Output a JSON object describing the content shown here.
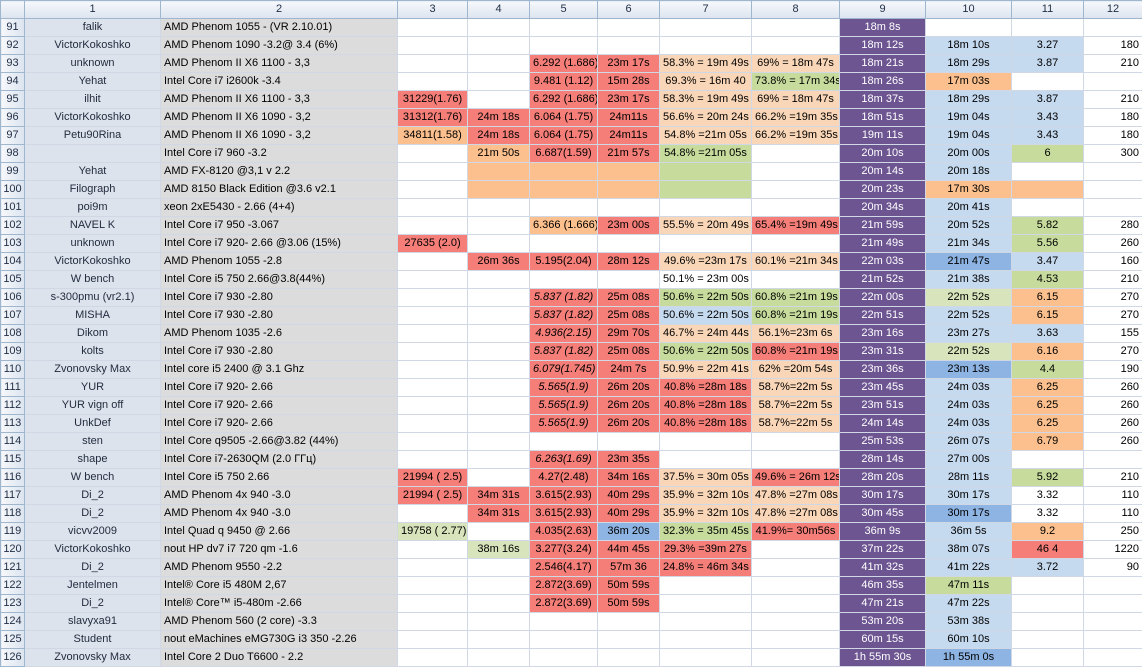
{
  "colors": {
    "header_bg": "#dce4ef",
    "name_col": "#dde3ec",
    "cpu_col": "#dcdcdc",
    "red": "#f57e79",
    "orange": "#fbc08d",
    "green": "#c6db9c",
    "lightblue": "#c5d9ef",
    "blue": "#8eb4e3",
    "purple_dark": "#5f4a7a",
    "purple": "#6c5591",
    "peach": "#f9d6b7",
    "lightgreen": "#d8e4bc"
  },
  "columns": [
    "1",
    "2",
    "3",
    "4",
    "5",
    "6",
    "7",
    "8",
    "9",
    "10",
    "11",
    "12"
  ],
  "rows": [
    {
      "n": "91",
      "c": [
        "falik",
        "AMD Phenom 1055 - (VR 2.10.01)",
        "",
        "",
        "",
        "",
        "",
        "",
        "18m 8s",
        "",
        "",
        ""
      ],
      "bg": [
        "",
        "",
        "",
        "",
        "",
        "",
        "",
        "",
        "pd",
        "",
        "",
        ""
      ]
    },
    {
      "n": "92",
      "c": [
        "VictorKokoshko",
        "AMD Phenom 1090 -3.2@ 3.4 (6%)",
        "",
        "",
        "",
        "",
        "",
        "",
        "18m 12s",
        "18m 10s",
        "3.27",
        "180"
      ],
      "bg": [
        "",
        "",
        "",
        "",
        "",
        "",
        "",
        "",
        "pd",
        "lb",
        "lb",
        ""
      ]
    },
    {
      "n": "93",
      "c": [
        "unknown",
        "AMD Phenom II X6 1100 - 3,3",
        "",
        "",
        "6.292 (1.686)",
        "23m 17s",
        "58.3% = 19m 49s",
        "69% = 18m 47s",
        "18m 21s",
        "18m 29s",
        "3.87",
        "210"
      ],
      "bg": [
        "",
        "",
        "",
        "",
        "r",
        "r",
        "pe",
        "pe",
        "pd",
        "lb",
        "lb",
        ""
      ]
    },
    {
      "n": "94",
      "c": [
        "Yehat",
        "Intel Core i7 i2600k -3.4",
        "",
        "",
        "9.481 (1.12)",
        "15m 28s",
        "69.3% = 16m 40",
        "73.8% = 17m 34s",
        "18m 26s",
        "17m 03s",
        "",
        ""
      ],
      "bg": [
        "",
        "",
        "",
        "",
        "r",
        "r",
        "pe",
        "g",
        "pd",
        "or",
        "",
        ""
      ]
    },
    {
      "n": "95",
      "c": [
        "ilhit",
        "AMD Phenom II X6 1100 - 3,3",
        "31229(1.76)",
        "",
        "6.292 (1.686)",
        "23m 17s",
        "58.3% = 19m 49s",
        "69% = 18m 47s",
        "18m 37s",
        "18m 29s",
        "3.87",
        "210"
      ],
      "bg": [
        "",
        "",
        "r",
        "",
        "r",
        "r",
        "pe",
        "pe",
        "pd",
        "lb",
        "lb",
        ""
      ]
    },
    {
      "n": "96",
      "c": [
        "VictorKokoshko",
        "AMD Phenom II X6 1090 - 3,2",
        "31312(1.76)",
        "24m 18s",
        "6.064 (1.75)",
        "24m11s",
        "56.6% = 20m 24s",
        "66.2% =19m 35s",
        "18m 51s",
        "19m 04s",
        "3.43",
        "180"
      ],
      "bg": [
        "",
        "",
        "r",
        "r",
        "r",
        "r",
        "pe",
        "pe",
        "pd",
        "lb",
        "lb",
        ""
      ]
    },
    {
      "n": "97",
      "c": [
        "Petu90Rina",
        "AMD Phenom II X6 1090 - 3,2",
        "34811(1.58)",
        "24m 18s",
        "6.064 (1.75)",
        "24m11s",
        "54.8% =21m 05s",
        "66.2% =19m 35s",
        "19m 11s",
        "19m 04s",
        "3.43",
        "180"
      ],
      "bg": [
        "",
        "",
        "or",
        "r",
        "r",
        "r",
        "pe",
        "pe",
        "pd",
        "lb",
        "lb",
        ""
      ]
    },
    {
      "n": "98",
      "c": [
        "",
        "Intel Core i7 960 -3.2",
        "",
        "21m 50s",
        "6.687(1.59)",
        "21m 57s",
        "54.8% =21m 05s",
        "",
        "20m 10s",
        "20m 00s",
        "6",
        "300"
      ],
      "bg": [
        "",
        "",
        "",
        "or",
        "r",
        "r",
        "g",
        "",
        "pd",
        "lb",
        "g",
        ""
      ]
    },
    {
      "n": "99",
      "c": [
        "Yehat",
        "AMD FX-8120 @3,1 v 2.2",
        "",
        "",
        "",
        "",
        "",
        "",
        "20m 14s",
        "20m 18s",
        "",
        ""
      ],
      "bg": [
        "",
        "",
        "",
        "or",
        "or",
        "or",
        "g",
        "",
        "pd",
        "lb",
        "",
        ""
      ]
    },
    {
      "n": "100",
      "c": [
        "Filograph",
        "AMD 8150 Black Edition @3.6 v2.1",
        "",
        "",
        "",
        "",
        "",
        "",
        "20m 23s",
        "17m 30s",
        "",
        ""
      ],
      "bg": [
        "",
        "",
        "",
        "or",
        "or",
        "or",
        "g",
        "",
        "pd",
        "or",
        "or",
        ""
      ]
    },
    {
      "n": "101",
      "c": [
        "poi9m",
        "xeon 2xE5430 - 2.66 (4+4)",
        "",
        "",
        "",
        "",
        "",
        "",
        "20m 34s",
        "20m 41s",
        "",
        ""
      ],
      "bg": [
        "",
        "",
        "",
        "",
        "",
        "",
        "",
        "",
        "pd",
        "lb",
        "",
        ""
      ]
    },
    {
      "n": "102",
      "c": [
        "NAVEL K",
        "Intel Core i7 950 -3.067",
        "",
        "",
        "6.366 (1.666)",
        "23m 00s",
        "55.5% = 20m 49s",
        "65.4% =19m 49s",
        "21m 59s",
        "20m 52s",
        "5.82",
        "280"
      ],
      "bg": [
        "",
        "",
        "",
        "",
        "or",
        "r",
        "pe",
        "r",
        "pd",
        "lb",
        "g",
        ""
      ]
    },
    {
      "n": "103",
      "c": [
        "unknown",
        "Intel Core i7 920- 2.66 @3.06 (15%)",
        "27635 (2.0)",
        "",
        "",
        "",
        "",
        "",
        "21m 49s",
        "21m 34s",
        "5.56",
        "260"
      ],
      "bg": [
        "",
        "",
        "r",
        "",
        "",
        "",
        "",
        "",
        "pd",
        "lb",
        "g",
        ""
      ]
    },
    {
      "n": "104",
      "c": [
        "VictorKokoshko",
        "AMD Phenom 1055 -2.8",
        "",
        "26m 36s",
        "5.195(2.04)",
        "28m 12s",
        "49.6% =23m 17s",
        "60.1% =21m 34s",
        "22m 03s",
        "21m 47s",
        "3.47",
        "160"
      ],
      "bg": [
        "",
        "",
        "",
        "r",
        "r",
        "r",
        "pe",
        "pe",
        "pd",
        "b",
        "lb",
        ""
      ]
    },
    {
      "n": "105",
      "c": [
        "W bench",
        "Intel Core i5 750 2.66@3.8(44%)",
        "",
        "",
        "",
        "",
        "50.1% = 23m 00s",
        "",
        "21m 52s",
        "21m 38s",
        "4.53",
        "210"
      ],
      "bg": [
        "",
        "",
        "",
        "",
        "",
        "",
        "",
        "",
        "pd",
        "lb",
        "g",
        ""
      ]
    },
    {
      "n": "106",
      "c": [
        "s-300pmu (vr2.1)",
        "Intel Core i7 930 -2.80",
        "",
        "",
        "5.837 (1.82)",
        "25m 08s",
        "50.6% = 22m 50s",
        "60.8% =21m 19s",
        "22m 00s",
        "22m 52s",
        "6.15",
        "270"
      ],
      "bg": [
        "",
        "",
        "",
        "",
        "r",
        "r",
        "g",
        "g",
        "pd",
        "lg",
        "or",
        ""
      ]
    },
    {
      "n": "107",
      "c": [
        "MISHA",
        "Intel Core i7 930 -2.80",
        "",
        "",
        "5.837 (1.82)",
        "25m 08s",
        "50.6% = 22m 50s",
        "60.8% =21m 19s",
        "22m 51s",
        "22m 52s",
        "6.15",
        "270"
      ],
      "bg": [
        "",
        "",
        "",
        "",
        "r",
        "r",
        "lb",
        "g",
        "pd",
        "lb",
        "or",
        ""
      ]
    },
    {
      "n": "108",
      "c": [
        "Dikom",
        "AMD Phenom 1035 -2.6",
        "",
        "",
        "4.936(2.15)",
        "29m 70s",
        "46.7% = 24m 44s",
        "56.1%=23m 6s",
        "23m 16s",
        "23m 27s",
        "3.63",
        "155"
      ],
      "bg": [
        "",
        "",
        "",
        "",
        "r",
        "r",
        "pe",
        "pe",
        "pd",
        "lb",
        "lb",
        ""
      ]
    },
    {
      "n": "109",
      "c": [
        "kolts",
        "Intel Core i7 930 -2.80",
        "",
        "",
        "5.837 (1.82)",
        "25m 08s",
        "50.6% = 22m 50s",
        "60.8% =21m 19s",
        "23m 31s",
        "22m 52s",
        "6.16",
        "270"
      ],
      "bg": [
        "",
        "",
        "",
        "",
        "r",
        "r",
        "g",
        "r",
        "pd",
        "lg",
        "or",
        ""
      ]
    },
    {
      "n": "110",
      "c": [
        "Zvonovsky Max",
        "Intel core i5 2400 @ 3.1 Ghz",
        "",
        "",
        "6.079(1.745)",
        "24m 7s",
        "50.9% = 22m 41s",
        "62% =20m 54s",
        "23m 36s",
        "23m 13s",
        "4.4",
        "190"
      ],
      "bg": [
        "",
        "",
        "",
        "",
        "r",
        "r",
        "pe",
        "pe",
        "pd",
        "b",
        "g",
        ""
      ]
    },
    {
      "n": "111",
      "c": [
        "YUR",
        "Intel Core i7 920- 2.66",
        "",
        "",
        "5.565(1.9)",
        "26m 20s",
        "40.8% =28m 18s",
        "58.7%=22m 5s",
        "23m 45s",
        "24m 03s",
        "6.25",
        "260"
      ],
      "bg": [
        "",
        "",
        "",
        "",
        "r",
        "r",
        "r",
        "pe",
        "pd",
        "lb",
        "or",
        ""
      ]
    },
    {
      "n": "112",
      "c": [
        "YUR vign off",
        "Intel Core i7 920- 2.66",
        "",
        "",
        "5.565(1.9)",
        "26m 20s",
        "40.8% =28m 18s",
        "58.7%=22m 5s",
        "23m 51s",
        "24m 03s",
        "6.25",
        "260"
      ],
      "bg": [
        "",
        "",
        "",
        "",
        "r",
        "r",
        "r",
        "pe",
        "pd",
        "lb",
        "or",
        ""
      ]
    },
    {
      "n": "113",
      "c": [
        "UnkDef",
        "Intel Core i7 920- 2.66",
        "",
        "",
        "5.565(1.9)",
        "26m 20s",
        "40.8% =28m 18s",
        "58.7%=22m 5s",
        "24m 14s",
        "24m 03s",
        "6.25",
        "260"
      ],
      "bg": [
        "",
        "",
        "",
        "",
        "r",
        "r",
        "r",
        "pe",
        "pd",
        "lb",
        "or",
        ""
      ]
    },
    {
      "n": "114",
      "c": [
        "sten",
        "Intel Core q9505 -2.66@3.82 (44%)",
        "",
        "",
        "",
        "",
        "",
        "",
        "25m 53s",
        "26m 07s",
        "6.79",
        "260"
      ],
      "bg": [
        "",
        "",
        "",
        "",
        "",
        "",
        "",
        "",
        "pd",
        "lb",
        "or",
        ""
      ]
    },
    {
      "n": "115",
      "c": [
        "shape",
        "Intel Core i7-2630QM (2.0 ГГц)",
        "",
        "",
        "6.263(1.69)",
        "23m 35s",
        "",
        "",
        "28m 14s",
        "27m 00s",
        "",
        ""
      ],
      "bg": [
        "",
        "",
        "",
        "",
        "r",
        "r",
        "",
        "",
        "pd",
        "lb",
        "",
        ""
      ]
    },
    {
      "n": "116",
      "c": [
        "W bench",
        "Intel Core i5 750 2.66",
        "21994 ( 2.5)",
        "",
        "4.27(2.48)",
        "34m 16s",
        "37.5% = 30m 05s",
        "49.6% = 26m 12s",
        "28m 20s",
        "28m 11s",
        "5.92",
        "210"
      ],
      "bg": [
        "",
        "",
        "r",
        "",
        "r",
        "r",
        "pe",
        "r",
        "pd",
        "lb",
        "g",
        ""
      ]
    },
    {
      "n": "117",
      "c": [
        "Di_2",
        "AMD Phenom 4x 940 -3.0",
        "21994 ( 2.5)",
        "34m 31s",
        "3.615(2.93)",
        "40m 29s",
        "35.9% = 32m 10s",
        "47.8% =27m 08s",
        "30m 17s",
        "30m 17s",
        "3.32",
        "110"
      ],
      "bg": [
        "",
        "",
        "r",
        "r",
        "r",
        "r",
        "pe",
        "pe",
        "pd",
        "lb",
        "",
        ""
      ]
    },
    {
      "n": "118",
      "c": [
        "Di_2",
        "AMD Phenom 4x 940 -3.0",
        "",
        "34m 31s",
        "3.615(2.93)",
        "40m 29s",
        "35.9% = 32m 10s",
        "47.8% =27m 08s",
        "30m 45s",
        "30m 17s",
        "3.32",
        "110"
      ],
      "bg": [
        "",
        "",
        "",
        "r",
        "r",
        "r",
        "pe",
        "pe",
        "pd",
        "b",
        "",
        ""
      ]
    },
    {
      "n": "119",
      "c": [
        "vicvv2009",
        "Intel Quad q 9450 @ 2.66",
        "19758 ( 2.77)",
        "",
        "4.035(2.63)",
        "36m 20s",
        "32.3% = 35m 45s",
        "41.9%= 30m56s",
        "36m 9s",
        "36m 5s",
        "9.2",
        "250"
      ],
      "bg": [
        "",
        "",
        "lg",
        "",
        "r",
        "b",
        "g",
        "r",
        "pd",
        "lb",
        "or",
        ""
      ]
    },
    {
      "n": "120",
      "c": [
        "VictorKokoshko",
        "nout HP dv7 i7 720 qm -1.6",
        "",
        "38m 16s",
        "3.277(3.24)",
        "44m 45s",
        "29.3% =39m 27s",
        "",
        "37m 22s",
        "38m 07s",
        "46 4",
        "1220"
      ],
      "bg": [
        "",
        "",
        "",
        "lg",
        "r",
        "r",
        "r",
        "",
        "pd",
        "lb",
        "r",
        ""
      ]
    },
    {
      "n": "121",
      "c": [
        "Di_2",
        "AMD Phenom 9550 -2.2",
        "",
        "",
        "2.546(4.17)",
        "57m 36",
        "24.8% = 46m 34s",
        "",
        "41m 32s",
        "41m 22s",
        "3.72",
        "90"
      ],
      "bg": [
        "",
        "",
        "",
        "",
        "r",
        "r",
        "r",
        "",
        "pd",
        "lb",
        "lb",
        ""
      ]
    },
    {
      "n": "122",
      "c": [
        "Jentelmen",
        "Intel® Core i5 480M 2,67",
        "",
        "",
        "2.872(3.69)",
        "50m 59s",
        "",
        "",
        "46m 35s",
        "47m 11s",
        "",
        ""
      ],
      "bg": [
        "",
        "",
        "",
        "",
        "r",
        "r",
        "",
        "",
        "pd",
        "g",
        "",
        ""
      ]
    },
    {
      "n": "123",
      "c": [
        "Di_2",
        "Intel® Core™ i5-480m -2.66",
        "",
        "",
        "2.872(3.69)",
        "50m 59s",
        "",
        "",
        "47m 21s",
        "47m 22s",
        "",
        ""
      ],
      "bg": [
        "",
        "",
        "",
        "",
        "r",
        "r",
        "",
        "",
        "pd",
        "lb",
        "",
        ""
      ]
    },
    {
      "n": "124",
      "c": [
        "slavyxa91",
        "AMD Phenom 560 (2 core) -3.3",
        "",
        "",
        "",
        "",
        "",
        "",
        "53m 20s",
        "53m 38s",
        "",
        ""
      ],
      "bg": [
        "",
        "",
        "",
        "",
        "",
        "",
        "",
        "",
        "pd",
        "lb",
        "",
        ""
      ]
    },
    {
      "n": "125",
      "c": [
        "Student",
        "nout eMachines eMG730G i3 350 -2.26",
        "",
        "",
        "",
        "",
        "",
        "",
        "60m 15s",
        "60m 10s",
        "",
        ""
      ],
      "bg": [
        "",
        "",
        "",
        "",
        "",
        "",
        "",
        "",
        "pd",
        "lb",
        "",
        ""
      ]
    },
    {
      "n": "126",
      "c": [
        "Zvonovsky Max",
        "Intel Core 2 Duo T6600 - 2.2",
        "",
        "",
        "",
        "",
        "",
        "",
        "1h 55m 30s",
        "1h 55m 0s",
        "",
        ""
      ],
      "bg": [
        "",
        "",
        "",
        "",
        "",
        "",
        "",
        "",
        "pd",
        "b",
        "",
        ""
      ]
    }
  ]
}
